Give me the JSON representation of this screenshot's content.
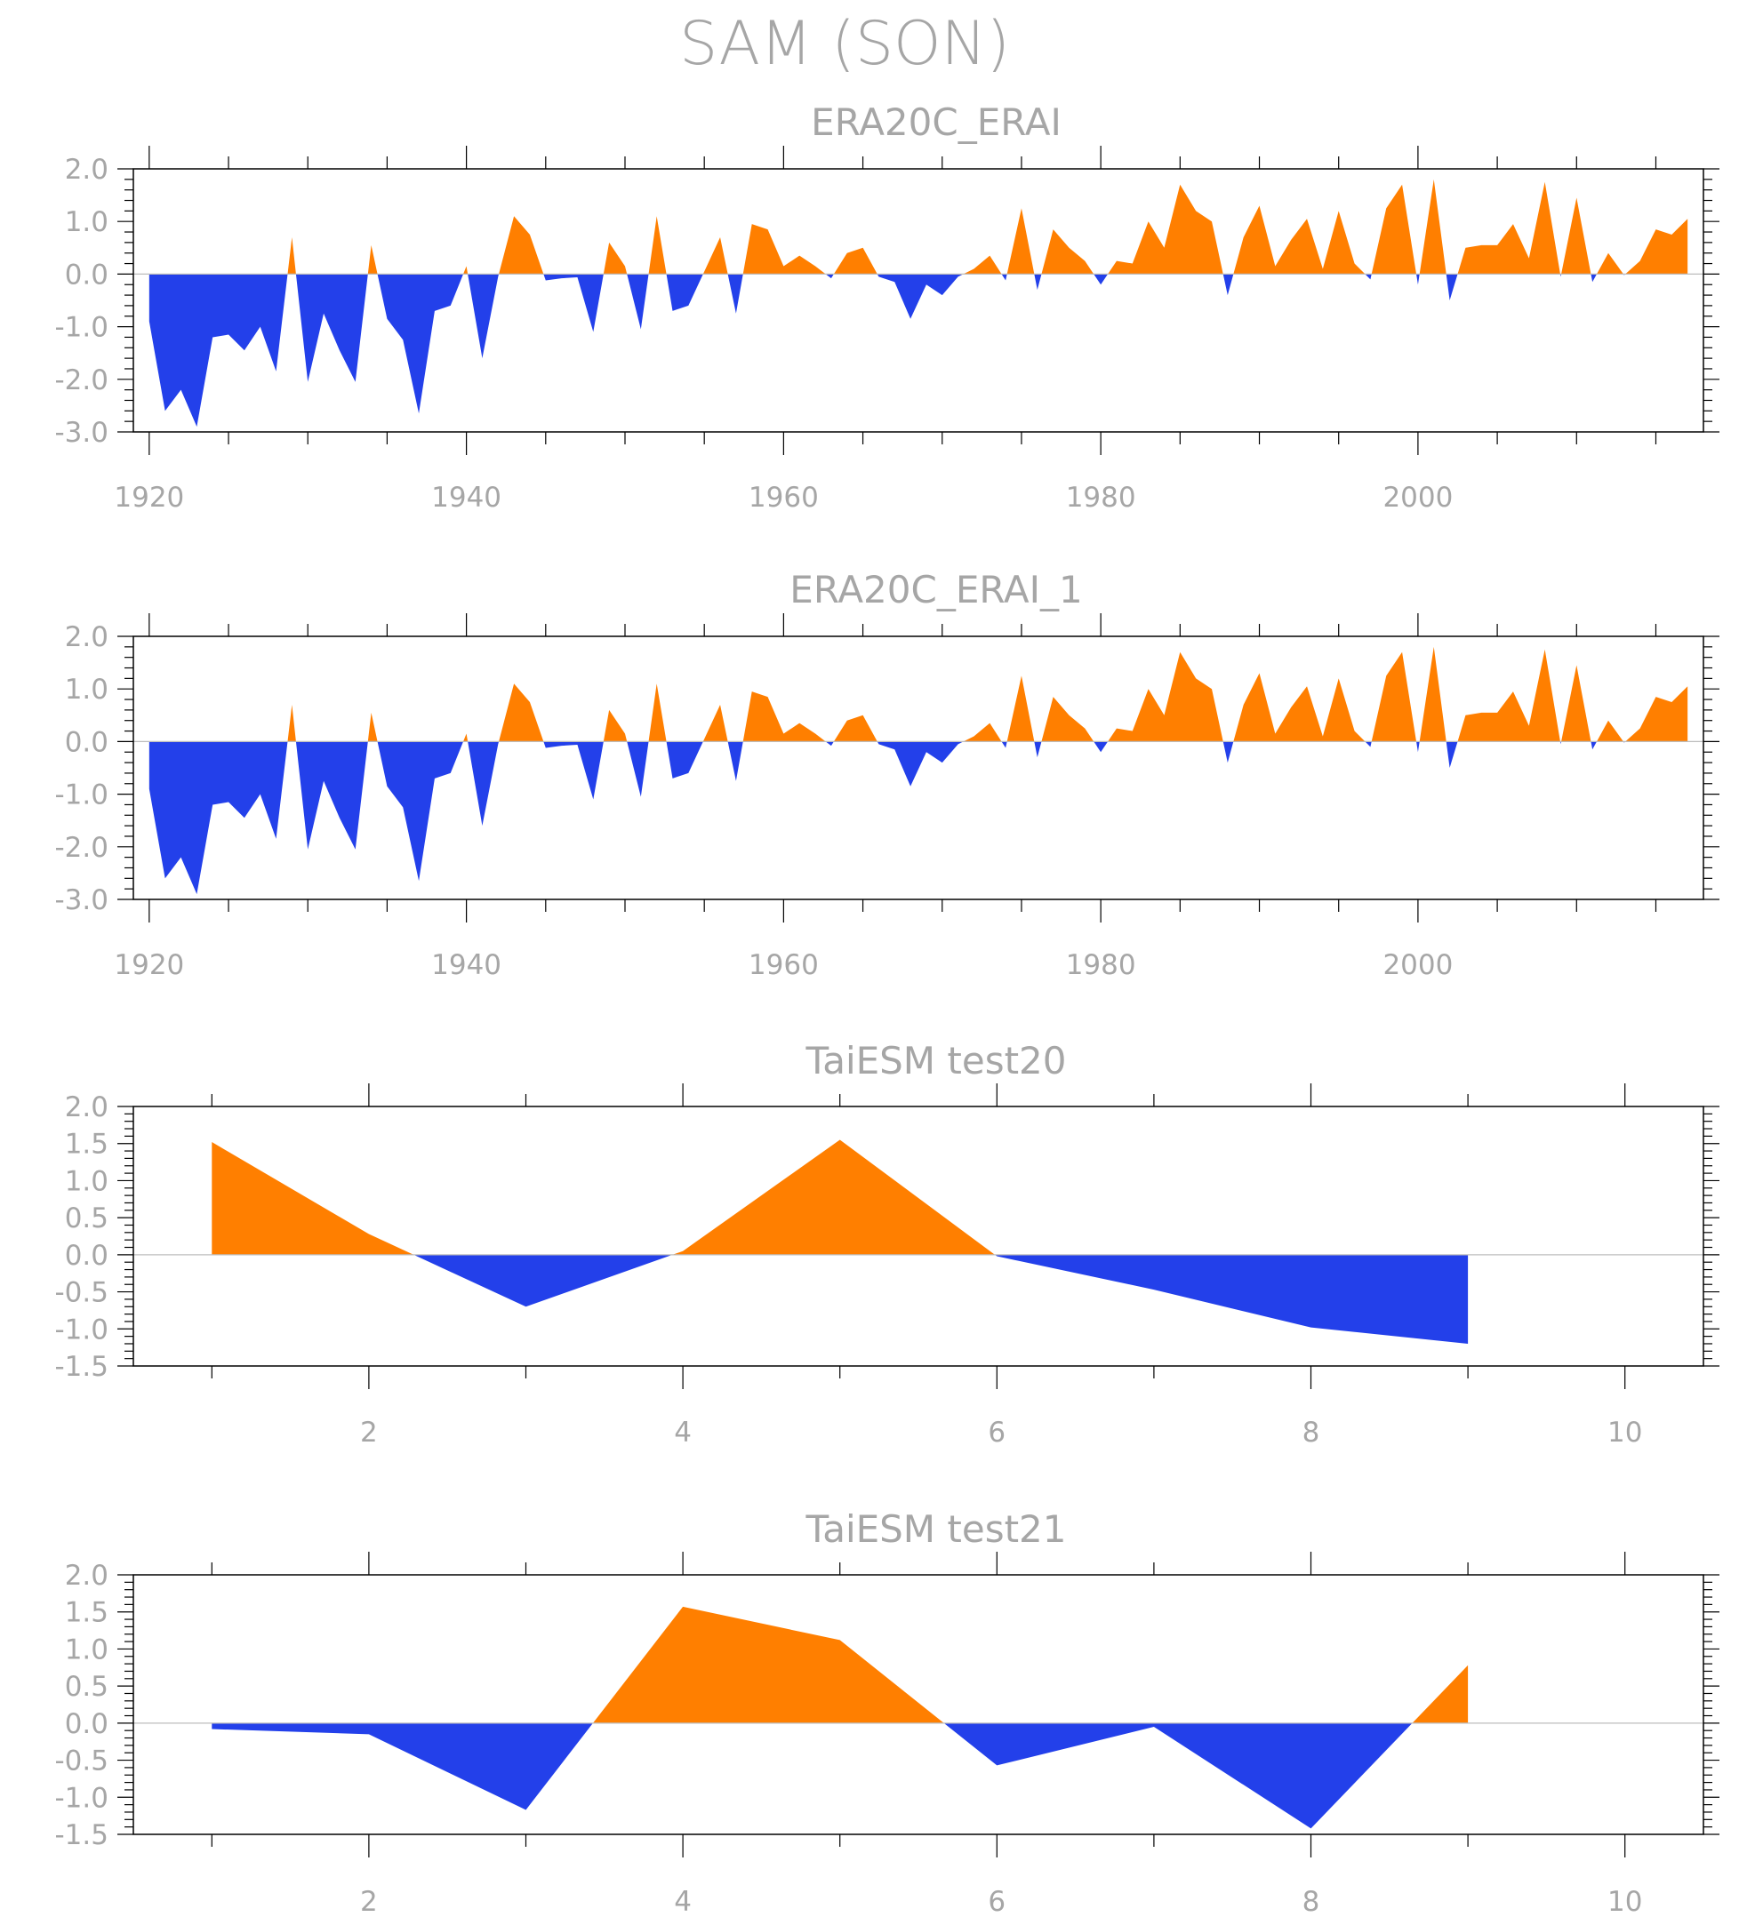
{
  "figure": {
    "title": "SAM (SON)"
  },
  "colors": {
    "positive": "#ff7f00",
    "negative": "#2340ea",
    "text": "#a6a6a6",
    "zero_line": "#bdbdbd"
  },
  "chart_data": [
    {
      "type": "area",
      "title": "ERA20C_ERAI",
      "xlabel": "",
      "ylabel": "",
      "xlim": [
        1919,
        2018
      ],
      "ylim": [
        -3.0,
        2.0
      ],
      "xticks": [
        1920,
        1940,
        1960,
        1980,
        2000
      ],
      "xtick_labels": [
        "1920",
        "1940",
        "1960",
        "1980",
        "2000"
      ],
      "yticks": [
        2.0,
        1.0,
        0.0,
        -1.0,
        -2.0,
        -3.0
      ],
      "ytick_labels": [
        "2.0",
        "1.0",
        "0.0",
        "-1.0",
        "-2.0",
        "-3.0"
      ],
      "grid": false,
      "fill_rule": "orange above 0, blue below 0",
      "x": [
        1920,
        1921,
        1922,
        1923,
        1924,
        1925,
        1926,
        1927,
        1928,
        1929,
        1930,
        1931,
        1932,
        1933,
        1934,
        1935,
        1936,
        1937,
        1938,
        1939,
        1940,
        1941,
        1942,
        1943,
        1944,
        1945,
        1946,
        1947,
        1948,
        1949,
        1950,
        1951,
        1952,
        1953,
        1954,
        1955,
        1956,
        1957,
        1958,
        1959,
        1960,
        1961,
        1962,
        1963,
        1964,
        1965,
        1966,
        1967,
        1968,
        1969,
        1970,
        1971,
        1972,
        1973,
        1974,
        1975,
        1976,
        1977,
        1978,
        1979,
        1980,
        1981,
        1982,
        1983,
        1984,
        1985,
        1986,
        1987,
        1988,
        1989,
        1990,
        1991,
        1992,
        1993,
        1994,
        1995,
        1996,
        1997,
        1998,
        1999,
        2000,
        2001,
        2002,
        2003,
        2004,
        2005,
        2006,
        2007,
        2008,
        2009,
        2010,
        2011,
        2012,
        2013,
        2014,
        2015,
        2016,
        2017
      ],
      "y": [
        -0.9,
        -2.6,
        -2.2,
        -2.9,
        -1.2,
        -1.15,
        -1.45,
        -1.0,
        -1.85,
        0.7,
        -2.05,
        -0.75,
        -1.45,
        -2.05,
        0.55,
        -0.85,
        -1.25,
        -2.65,
        -0.7,
        -0.6,
        0.15,
        -1.6,
        -0.05,
        1.1,
        0.75,
        -0.12,
        -0.08,
        -0.06,
        -1.1,
        0.6,
        0.15,
        -1.05,
        1.1,
        -0.7,
        -0.6,
        0.05,
        0.7,
        -0.75,
        0.95,
        0.85,
        0.15,
        0.35,
        0.15,
        -0.08,
        0.4,
        0.5,
        -0.05,
        -0.15,
        -0.85,
        -0.2,
        -0.4,
        -0.05,
        0.1,
        0.35,
        -0.12,
        1.25,
        -0.3,
        0.85,
        0.5,
        0.25,
        -0.2,
        0.25,
        0.2,
        1.0,
        0.5,
        1.7,
        1.2,
        1.0,
        -0.4,
        0.7,
        1.3,
        0.15,
        0.65,
        1.05,
        0.1,
        1.2,
        0.2,
        -0.1,
        1.25,
        1.7,
        -0.2,
        1.8,
        -0.5,
        0.5,
        0.55,
        0.55,
        0.95,
        0.3,
        1.75,
        -0.05,
        1.45,
        -0.15,
        0.4,
        -0.02,
        0.25,
        0.85,
        0.75,
        1.05
      ]
    },
    {
      "type": "area",
      "title": "ERA20C_ERAI_1",
      "xlabel": "",
      "ylabel": "",
      "xlim": [
        1919,
        2018
      ],
      "ylim": [
        -3.0,
        2.0
      ],
      "xticks": [
        1920,
        1940,
        1960,
        1980,
        2000
      ],
      "xtick_labels": [
        "1920",
        "1940",
        "1960",
        "1980",
        "2000"
      ],
      "yticks": [
        2.0,
        1.0,
        0.0,
        -1.0,
        -2.0,
        -3.0
      ],
      "ytick_labels": [
        "2.0",
        "1.0",
        "0.0",
        "-1.0",
        "-2.0",
        "-3.0"
      ],
      "grid": false,
      "fill_rule": "orange above 0, blue below 0",
      "x": [
        1920,
        1921,
        1922,
        1923,
        1924,
        1925,
        1926,
        1927,
        1928,
        1929,
        1930,
        1931,
        1932,
        1933,
        1934,
        1935,
        1936,
        1937,
        1938,
        1939,
        1940,
        1941,
        1942,
        1943,
        1944,
        1945,
        1946,
        1947,
        1948,
        1949,
        1950,
        1951,
        1952,
        1953,
        1954,
        1955,
        1956,
        1957,
        1958,
        1959,
        1960,
        1961,
        1962,
        1963,
        1964,
        1965,
        1966,
        1967,
        1968,
        1969,
        1970,
        1971,
        1972,
        1973,
        1974,
        1975,
        1976,
        1977,
        1978,
        1979,
        1980,
        1981,
        1982,
        1983,
        1984,
        1985,
        1986,
        1987,
        1988,
        1989,
        1990,
        1991,
        1992,
        1993,
        1994,
        1995,
        1996,
        1997,
        1998,
        1999,
        2000,
        2001,
        2002,
        2003,
        2004,
        2005,
        2006,
        2007,
        2008,
        2009,
        2010,
        2011,
        2012,
        2013,
        2014,
        2015,
        2016,
        2017
      ],
      "y": [
        -0.9,
        -2.6,
        -2.2,
        -2.9,
        -1.2,
        -1.15,
        -1.45,
        -1.0,
        -1.85,
        0.7,
        -2.05,
        -0.75,
        -1.45,
        -2.05,
        0.55,
        -0.85,
        -1.25,
        -2.65,
        -0.7,
        -0.6,
        0.15,
        -1.6,
        -0.05,
        1.1,
        0.75,
        -0.12,
        -0.08,
        -0.06,
        -1.1,
        0.6,
        0.15,
        -1.05,
        1.1,
        -0.7,
        -0.6,
        0.05,
        0.7,
        -0.75,
        0.95,
        0.85,
        0.15,
        0.35,
        0.15,
        -0.08,
        0.4,
        0.5,
        -0.05,
        -0.15,
        -0.85,
        -0.2,
        -0.4,
        -0.05,
        0.1,
        0.35,
        -0.12,
        1.25,
        -0.3,
        0.85,
        0.5,
        0.25,
        -0.2,
        0.25,
        0.2,
        1.0,
        0.5,
        1.7,
        1.2,
        1.0,
        -0.4,
        0.7,
        1.3,
        0.15,
        0.65,
        1.05,
        0.1,
        1.2,
        0.2,
        -0.1,
        1.25,
        1.7,
        -0.2,
        1.8,
        -0.5,
        0.5,
        0.55,
        0.55,
        0.95,
        0.3,
        1.75,
        -0.05,
        1.45,
        -0.15,
        0.4,
        -0.02,
        0.25,
        0.85,
        0.75,
        1.05
      ]
    },
    {
      "type": "area",
      "title": "TaiESM test20",
      "xlabel": "",
      "ylabel": "",
      "xlim": [
        0.5,
        10.5
      ],
      "ylim": [
        -1.5,
        2.0
      ],
      "xticks": [
        2,
        4,
        6,
        8,
        10
      ],
      "xtick_labels": [
        "2",
        "4",
        "6",
        "8",
        "10"
      ],
      "yticks": [
        2.0,
        1.5,
        1.0,
        0.5,
        0.0,
        -0.5,
        -1.0,
        -1.5
      ],
      "ytick_labels": [
        "2.0",
        "1.5",
        "1.0",
        "0.5",
        "0.0",
        "-0.5",
        "-1.0",
        "-1.5"
      ],
      "grid": false,
      "fill_rule": "orange above 0, blue below 0",
      "x": [
        1,
        2,
        3,
        4,
        5,
        6,
        7,
        8,
        9
      ],
      "y": [
        1.52,
        0.28,
        -0.7,
        0.05,
        1.55,
        -0.02,
        -0.47,
        -0.98,
        -1.2
      ]
    },
    {
      "type": "area",
      "title": "TaiESM test21",
      "xlabel": "",
      "ylabel": "",
      "xlim": [
        0.5,
        10.5
      ],
      "ylim": [
        -1.5,
        2.0
      ],
      "xticks": [
        2,
        4,
        6,
        8,
        10
      ],
      "xtick_labels": [
        "2",
        "4",
        "6",
        "8",
        "10"
      ],
      "yticks": [
        2.0,
        1.5,
        1.0,
        0.5,
        0.0,
        -0.5,
        -1.0,
        -1.5
      ],
      "ytick_labels": [
        "2.0",
        "1.5",
        "1.0",
        "0.5",
        "0.0",
        "-0.5",
        "-1.0",
        "-1.5"
      ],
      "grid": false,
      "fill_rule": "orange above 0, blue below 0",
      "x": [
        1,
        2,
        3,
        4,
        5,
        6,
        7,
        8,
        9
      ],
      "y": [
        -0.08,
        -0.15,
        -1.17,
        1.57,
        1.12,
        -0.57,
        -0.05,
        -1.42,
        0.78
      ]
    }
  ]
}
